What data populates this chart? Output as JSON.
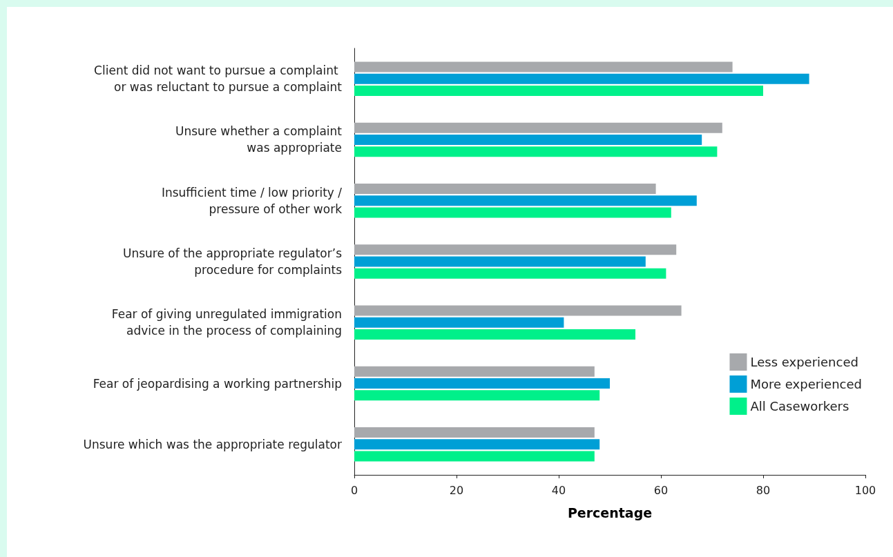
{
  "chart_data": {
    "type": "bar",
    "orientation": "horizontal",
    "xlabel": "Percentage",
    "categories": [
      "Client did not want to pursue a complaint \nor was reluctant to pursue a complaint",
      "Unsure whether a complaint\nwas appropriate",
      "Insufficient time / low priority /\npressure of other work",
      "Unsure of the appropriate regulator’s\nprocedure for complaints",
      "Fear of giving unregulated immigration\nadvice in the process of complaining",
      "Fear of jeopardising a working partnership",
      "Unsure which was the appropriate regulator"
    ],
    "series": [
      {
        "name": "Less experienced",
        "color": "#a7a9ac",
        "values": [
          74,
          72,
          59,
          63,
          64,
          47,
          47
        ]
      },
      {
        "name": "More experienced",
        "color": "#009fd6",
        "values": [
          89,
          68,
          67,
          57,
          41,
          50,
          48
        ]
      },
      {
        "name": "All Caseworkers",
        "color": "#00f08a",
        "values": [
          80,
          71,
          62,
          61,
          55,
          48,
          47
        ]
      }
    ],
    "xlim": [
      0,
      100
    ],
    "xticks": [
      0,
      20,
      40,
      60,
      80,
      100
    ],
    "grid": false,
    "legend": "right"
  }
}
